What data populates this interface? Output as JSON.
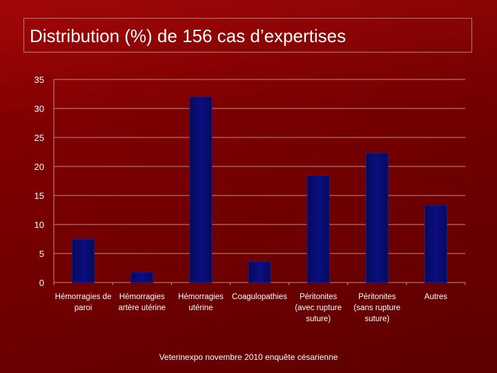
{
  "slide": {
    "title": "Distribution (%) de 156 cas d’expertises",
    "footer": "Veterinexpo novembre 2010 enquête césarienne"
  },
  "colors": {
    "background": "#7a0000",
    "bar": "#0b0f80",
    "gridline": "#c98a8a",
    "text": "#ffffff"
  },
  "chart_data": {
    "type": "bar",
    "title": "",
    "xlabel": "",
    "ylabel": "",
    "categories": [
      [
        "Hémorragies de",
        "paroi"
      ],
      [
        "Hémorragies",
        "artère utérine"
      ],
      [
        "Hémorragies",
        "utérine"
      ],
      [
        "Coagulopathies"
      ],
      [
        "Péritonites",
        "(avec rupture",
        "suture)"
      ],
      [
        "Péritonites",
        "(sans rupture",
        "suture)"
      ],
      [
        "Autres"
      ]
    ],
    "values": [
      7.5,
      1.8,
      32,
      3.6,
      18.4,
      22.3,
      13.3
    ],
    "ylim": [
      0,
      35
    ],
    "yticks": [
      "0",
      "5",
      "10",
      "15",
      "20",
      "25",
      "30",
      "35"
    ],
    "grid": true,
    "legend": "none"
  }
}
